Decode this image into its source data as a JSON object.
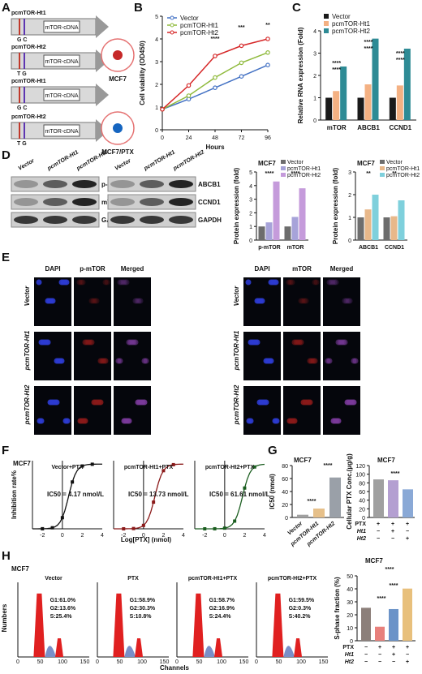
{
  "panels": {
    "A": {
      "letter": "A",
      "constructs": [
        {
          "name": "pcmTOR-Ht1",
          "snp": "GC",
          "cdna": "mTOR-cDNA"
        },
        {
          "name": "pcmTOR-Ht2",
          "snp": "TG",
          "cdna": "mTOR-cDNA"
        },
        {
          "name": "pcmTOR-Ht1",
          "snp": "GC",
          "cdna": "mTOR-cDNA"
        },
        {
          "name": "pcmTOR-Ht2",
          "snp": "TG",
          "cdna": "mTOR-cDNA"
        }
      ],
      "cell_top": "MCF7",
      "cell_bottom": "MCF7/PTX"
    },
    "B": {
      "letter": "B",
      "sig": [
        "****",
        "***",
        "**"
      ]
    },
    "C": {
      "letter": "C",
      "sig": [
        "****",
        "****",
        "****",
        "****",
        "****",
        "****"
      ]
    },
    "D": {
      "letter": "D",
      "blot_cols": [
        "Vector",
        "pcmTOR-Ht1",
        "pcmTOR-Ht2"
      ],
      "blot_left_rows": [
        "p-mTOR",
        "mTOR",
        "GAPDH"
      ],
      "blot_right_rows": [
        "ABCB1",
        "CCND1",
        "GAPDH"
      ]
    },
    "E": {
      "letter": "E",
      "cols_left": [
        "DAPI",
        "p-mTOR",
        "Merged"
      ],
      "cols_right": [
        "DAPI",
        "mTOR",
        "Merged"
      ],
      "rows": [
        "Vector",
        "pcmTOR-Ht1",
        "pcmTOR-Ht2"
      ]
    },
    "F": {
      "letter": "F",
      "cell": "MCF7",
      "curves": [
        {
          "title": "Vector+PTX",
          "ic50": "IC50 = 4.17 nmol/L"
        },
        {
          "title": "pcmTOR-Ht1+PTX",
          "ic50": "IC50 = 13.73 nmol/L"
        },
        {
          "title": "pcmTOR-Ht2+PTX",
          "ic50": "IC50 = 61.61 nmol/L"
        }
      ],
      "ylabel": "Inhibition rate%",
      "xlabel": "Log[PTX] (nmol)"
    },
    "G": {
      "letter": "G",
      "cell": "MCF7",
      "sig": [
        "****",
        "****",
        "****"
      ],
      "rows": {
        "PTX": [
          "+",
          "+",
          "+"
        ],
        "Ht1": [
          "−",
          "+",
          "−"
        ],
        "Ht2": [
          "−",
          "−",
          "+"
        ]
      }
    },
    "H": {
      "letter": "H",
      "cell": "MCF7",
      "ylabel": "Numbers",
      "xlabel": "Channels",
      "histos": [
        {
          "title": "Vector",
          "g1": "G1:61.0%",
          "g2": "G2:13.6%",
          "s": "S:25.4%"
        },
        {
          "title": "PTX",
          "g1": "G1:58.9%",
          "g2": "G2:30.3%",
          "s": "S:10.8%"
        },
        {
          "title": "pcmTOR-Ht1+PTX",
          "g1": "G1:58.7%",
          "g2": "G2:16.9%",
          "s": "S:24.4%"
        },
        {
          "title": "pcmTOR-Ht2+PTX",
          "g1": "G1:59.5%",
          "g2": "G2:0.3%",
          "s": "S:40.2%"
        }
      ],
      "sig": [
        "****",
        "****",
        "****"
      ],
      "rows": {
        "PTX": [
          "−",
          "+",
          "+",
          "+"
        ],
        "Ht1": [
          "−",
          "−",
          "+",
          "−"
        ],
        "Ht2": [
          "−",
          "−",
          "−",
          "+"
        ]
      }
    }
  },
  "colors": {
    "vector": "#1a1a1a",
    "ht1": "#f4b183",
    "ht2": "#2e8b95",
    "B_vector": "#4472c4",
    "B_ht1": "#8fba3c",
    "B_ht2": "#d62728",
    "D_vector": "#6d6d6d",
    "D_ht1": "#a7a3d9",
    "D_ht2": "#c59bdb",
    "D2_ht1": "#e8b88a",
    "D2_ht2": "#7fd0dc",
    "G_b1": "#a0a0a0",
    "G_b2": "#b49fd1",
    "G_b3": "#8aa9d6",
    "H_b1": "#8c7f7a",
    "H_b2": "#e8807c",
    "H_b3": "#6b93c8",
    "H_b4": "#e8c07c"
  },
  "chart_data": [
    {
      "type": "line",
      "panel": "B",
      "title": "",
      "xlabel": "Hours",
      "ylabel": "Cell viability (OD450)",
      "x": [
        0,
        24,
        48,
        72,
        96
      ],
      "ylim": [
        0,
        5
      ],
      "xticks": [
        0,
        24,
        48,
        72,
        96
      ],
      "yticks": [
        0,
        1,
        2,
        3,
        4,
        5
      ],
      "legend": "top-left",
      "series": [
        {
          "name": "Vector",
          "values": [
            0.9,
            1.35,
            1.85,
            2.35,
            2.85
          ]
        },
        {
          "name": "pcmTOR-Ht1",
          "values": [
            0.9,
            1.5,
            2.3,
            2.95,
            3.4
          ]
        },
        {
          "name": "pcmTOR-Ht2",
          "values": [
            0.9,
            1.95,
            3.25,
            3.7,
            4.0
          ]
        }
      ]
    },
    {
      "type": "bar",
      "panel": "C",
      "ylabel": "Relative RNA expression (Fold)",
      "categories": [
        "mTOR",
        "ABCB1",
        "CCND1"
      ],
      "ylim": [
        0,
        4
      ],
      "yticks": [
        0,
        1,
        2,
        3,
        4
      ],
      "legend": "top-left",
      "series": [
        {
          "name": "Vector",
          "values": [
            1.0,
            1.0,
            1.0
          ]
        },
        {
          "name": "pcmTOR-Ht1",
          "values": [
            1.3,
            1.6,
            1.55
          ]
        },
        {
          "name": "pcmTOR-Ht2",
          "values": [
            2.4,
            3.65,
            3.2
          ]
        }
      ]
    },
    {
      "type": "bar",
      "panel": "D-left",
      "title": "MCF7",
      "ylabel": "Protein expression (fold)",
      "categories": [
        "p-mTOR",
        "mTOR"
      ],
      "ylim": [
        0,
        5
      ],
      "yticks": [
        0,
        1,
        2,
        3,
        4,
        5
      ],
      "legend": "top-right",
      "series": [
        {
          "name": "Vector",
          "values": [
            1.0,
            1.0
          ]
        },
        {
          "name": "pcmTOR-Ht1",
          "values": [
            1.3,
            1.7
          ]
        },
        {
          "name": "pcmTOR-Ht2",
          "values": [
            4.3,
            3.8
          ]
        }
      ],
      "sig": [
        "****",
        "****"
      ]
    },
    {
      "type": "bar",
      "panel": "D-right",
      "title": "MCF7",
      "ylabel": "Protein expression (fold)",
      "categories": [
        "ABCB1",
        "CCND1"
      ],
      "ylim": [
        0,
        3
      ],
      "yticks": [
        0,
        1,
        2,
        3
      ],
      "legend": "top-right",
      "series": [
        {
          "name": "Vector",
          "values": [
            1.0,
            1.0
          ]
        },
        {
          "name": "pcmTOR-Ht1",
          "values": [
            1.35,
            1.05
          ]
        },
        {
          "name": "pcmTOR-Ht2",
          "values": [
            2.0,
            1.75
          ]
        }
      ],
      "sig": [
        "**",
        "**"
      ]
    },
    {
      "type": "bar",
      "panel": "G-left",
      "title": "MCF7",
      "ylabel": "IC50 (nmol)",
      "categories": [
        "Vector",
        "pcmTOR-Ht1",
        "pcmTOR-Ht2"
      ],
      "values": [
        4.17,
        13.73,
        61.61
      ],
      "ylim": [
        0,
        80
      ],
      "yticks": [
        0,
        20,
        40,
        60,
        80
      ]
    },
    {
      "type": "bar",
      "panel": "G-right",
      "title": "MCF7",
      "ylabel": "Cellular PTX Conc.(µg/g)",
      "categories": [
        "PTX",
        "PTX+Ht1",
        "PTX+Ht2"
      ],
      "values": [
        88,
        86,
        65
      ],
      "ylim": [
        0,
        120
      ],
      "yticks": [
        0,
        20,
        40,
        60,
        80,
        100,
        120
      ]
    },
    {
      "type": "bar",
      "panel": "H-right",
      "title": "MCF7",
      "ylabel": "S-phase fraction (%)",
      "categories": [
        "Vector",
        "PTX",
        "pcmTOR-Ht1+PTX",
        "pcmTOR-Ht2+PTX"
      ],
      "values": [
        25.4,
        10.8,
        24.4,
        40.2
      ],
      "ylim": [
        0,
        50
      ],
      "yticks": [
        0,
        10,
        20,
        30,
        40,
        50
      ]
    }
  ]
}
